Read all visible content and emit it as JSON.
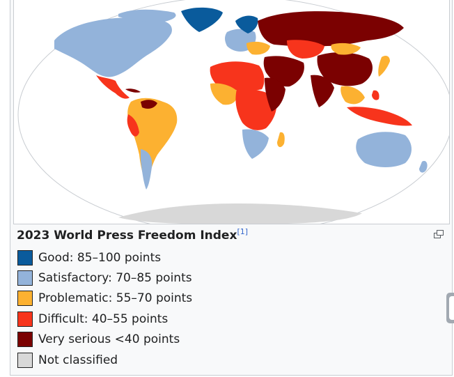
{
  "infobox": {
    "caption": "2023 World Press Freedom Index",
    "reference": "[1]",
    "enlarge_icon": "enlarge-icon"
  },
  "colors": {
    "good": "#0a5b9c",
    "satisfactory": "#93b3da",
    "problematic": "#fcb131",
    "difficult": "#f7341c",
    "very_serious": "#7b0101",
    "not_classified": "#d8d8d8",
    "ocean": "#ffffff"
  },
  "legend": [
    {
      "label": "Good: 85–100 points",
      "color": "#0a5b9c"
    },
    {
      "label": "Satisfactory: 70–85 points",
      "color": "#93b3da"
    },
    {
      "label": "Problematic: 55–70 points",
      "color": "#fcb131"
    },
    {
      "label": "Difficult: 40–55 points",
      "color": "#f7341c"
    },
    {
      "label": "Very serious <40 points",
      "color": "#7b0101"
    },
    {
      "label": "Not classified",
      "color": "#d8d8d8"
    }
  ]
}
